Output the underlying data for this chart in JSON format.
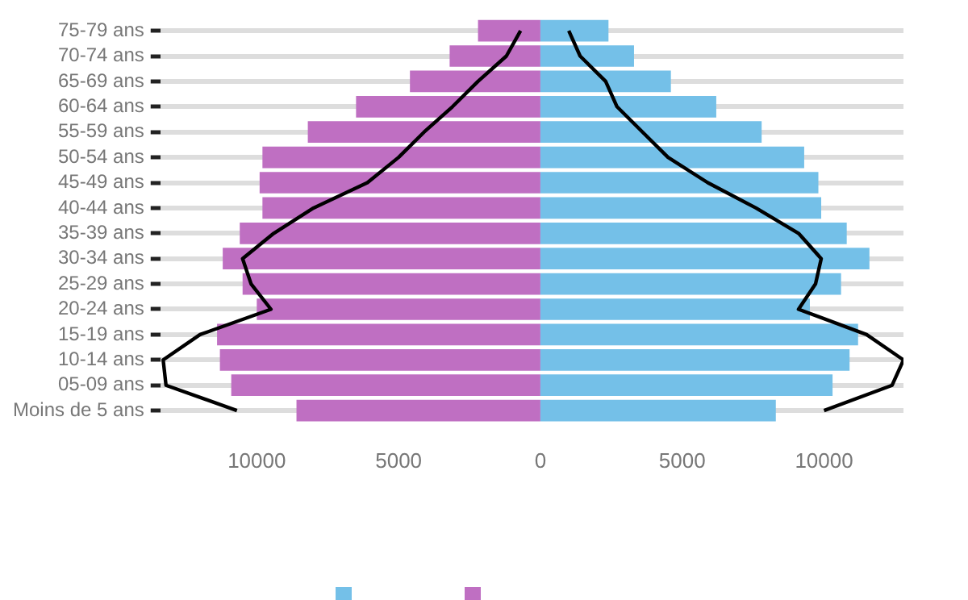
{
  "chart_data": {
    "type": "bar",
    "orientation": "horizontal",
    "stacked": true,
    "categories": [
      "75-79 ans",
      "70-74 ans",
      "65-69 ans",
      "60-64 ans",
      "55-59 ans",
      "50-54 ans",
      "45-49 ans",
      "40-44 ans",
      "35-39 ans",
      "30-34 ans",
      "25-29 ans",
      "20-24 ans",
      "15-19 ans",
      "10-14 ans",
      "05-09 ans",
      "Moins de 5 ans"
    ],
    "series": [
      {
        "color": "#74c0e8",
        "values": [
          2400,
          3300,
          4600,
          6200,
          7800,
          9300,
          9800,
          9900,
          10800,
          11600,
          10600,
          9500,
          11200,
          10900,
          10300,
          8300
        ]
      },
      {
        "color": "#bf6fc2",
        "values": [
          -2200,
          -3200,
          -4600,
          -6500,
          -8200,
          -9800,
          -9900,
          -9800,
          -10600,
          -11200,
          -10500,
          -10000,
          -11400,
          -11300,
          -10900,
          -8600
        ]
      },
      {
        "type": "line",
        "color": "#000000",
        "values": [
          1000,
          1400,
          2300,
          2700,
          3600,
          4500,
          5900,
          7600,
          9100,
          9900,
          9700,
          9100,
          11500,
          12800,
          12400,
          10000
        ]
      },
      {
        "type": "line",
        "color": "#000000",
        "values": [
          -700,
          -1200,
          -2200,
          -3100,
          -4100,
          -5000,
          -6100,
          -8000,
          -9400,
          -10500,
          -10200,
          -9500,
          -12000,
          -13300,
          -13200,
          -10700
        ]
      }
    ],
    "xlim": [
      -13400,
      12800
    ],
    "xticks": [
      {
        "value": -10000,
        "label": "10000"
      },
      {
        "value": -5000,
        "label": "5000"
      },
      0,
      5000,
      10000
    ],
    "grid": "y",
    "marker": "none",
    "line_style": "solid"
  }
}
